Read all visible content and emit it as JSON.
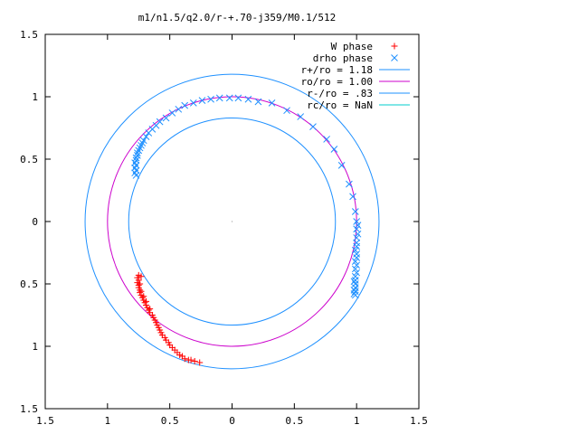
{
  "chart_data": {
    "type": "scatter",
    "title": "m1/n1.5/q2.0/r-+.70-j359/M0.1/512",
    "xlim": [
      -1.5,
      1.5
    ],
    "ylim": [
      -1.5,
      1.5
    ],
    "x_ticks": [
      {
        "value": -1.5,
        "label": "1.5"
      },
      {
        "value": -1.0,
        "label": "1"
      },
      {
        "value": -0.5,
        "label": "0.5"
      },
      {
        "value": 0,
        "label": "0"
      },
      {
        "value": 0.5,
        "label": "0.5"
      },
      {
        "value": 1.0,
        "label": "1"
      },
      {
        "value": 1.5,
        "label": "1.5"
      }
    ],
    "y_ticks": [
      {
        "value": 1.5,
        "label": "1.5"
      },
      {
        "value": 1.0,
        "label": "1"
      },
      {
        "value": 0.5,
        "label": "0.5"
      },
      {
        "value": 0,
        "label": "0"
      },
      {
        "value": -0.5,
        "label": "0.5"
      },
      {
        "value": -1.0,
        "label": "1"
      },
      {
        "value": -1.5,
        "label": "1.5"
      }
    ],
    "grid": false,
    "legend_position": "top-right",
    "series": [
      {
        "name": "W phase",
        "marker": "plus",
        "color": "#ff0000",
        "points": [
          [
            -0.75,
            -0.43
          ],
          [
            -0.76,
            -0.45
          ],
          [
            -0.75,
            -0.47
          ],
          [
            -0.76,
            -0.49
          ],
          [
            -0.75,
            -0.51
          ],
          [
            -0.75,
            -0.53
          ],
          [
            -0.74,
            -0.55
          ],
          [
            -0.74,
            -0.57
          ],
          [
            -0.73,
            -0.59
          ],
          [
            -0.72,
            -0.61
          ],
          [
            -0.71,
            -0.63
          ],
          [
            -0.7,
            -0.65
          ],
          [
            -0.69,
            -0.67
          ],
          [
            -0.68,
            -0.69
          ],
          [
            -0.67,
            -0.71
          ],
          [
            -0.66,
            -0.73
          ],
          [
            -0.64,
            -0.75
          ],
          [
            -0.63,
            -0.77
          ],
          [
            -0.62,
            -0.79
          ],
          [
            -0.61,
            -0.81
          ],
          [
            -0.6,
            -0.83
          ],
          [
            -0.59,
            -0.85
          ],
          [
            -0.58,
            -0.87
          ],
          [
            -0.57,
            -0.89
          ],
          [
            -0.56,
            -0.91
          ],
          [
            -0.54,
            -0.93
          ],
          [
            -0.53,
            -0.95
          ],
          [
            -0.51,
            -0.97
          ],
          [
            -0.5,
            -0.99
          ],
          [
            -0.48,
            -1.01
          ],
          [
            -0.46,
            -1.03
          ],
          [
            -0.44,
            -1.05
          ],
          [
            -0.42,
            -1.07
          ],
          [
            -0.4,
            -1.08
          ],
          [
            -0.38,
            -1.1
          ],
          [
            -0.35,
            -1.11
          ],
          [
            -0.33,
            -1.11
          ],
          [
            -0.3,
            -1.12
          ],
          [
            -0.26,
            -1.13
          ],
          [
            -0.73,
            -0.44
          ],
          [
            -0.74,
            -0.5
          ],
          [
            -0.73,
            -0.56
          ],
          [
            -0.71,
            -0.6
          ],
          [
            -0.69,
            -0.64
          ],
          [
            -0.66,
            -0.7
          ]
        ]
      },
      {
        "name": "drho phase",
        "marker": "x",
        "color": "#1e90ff",
        "points": [
          [
            -0.77,
            0.37
          ],
          [
            -0.78,
            0.39
          ],
          [
            -0.77,
            0.41
          ],
          [
            -0.78,
            0.43
          ],
          [
            -0.77,
            0.45
          ],
          [
            -0.78,
            0.47
          ],
          [
            -0.77,
            0.49
          ],
          [
            -0.77,
            0.51
          ],
          [
            -0.76,
            0.53
          ],
          [
            -0.76,
            0.55
          ],
          [
            -0.75,
            0.57
          ],
          [
            -0.74,
            0.59
          ],
          [
            -0.73,
            0.61
          ],
          [
            -0.72,
            0.63
          ],
          [
            -0.71,
            0.65
          ],
          [
            -0.69,
            0.68
          ],
          [
            -0.67,
            0.71
          ],
          [
            -0.64,
            0.74
          ],
          [
            -0.61,
            0.77
          ],
          [
            -0.58,
            0.8
          ],
          [
            -0.53,
            0.83
          ],
          [
            -0.48,
            0.87
          ],
          [
            -0.43,
            0.9
          ],
          [
            -0.38,
            0.93
          ],
          [
            -0.31,
            0.95
          ],
          [
            -0.24,
            0.97
          ],
          [
            -0.17,
            0.98
          ],
          [
            -0.1,
            0.99
          ],
          [
            -0.02,
            0.99
          ],
          [
            0.05,
            0.99
          ],
          [
            0.13,
            0.98
          ],
          [
            0.21,
            0.96
          ],
          [
            0.32,
            0.95
          ],
          [
            0.44,
            0.89
          ],
          [
            0.55,
            0.84
          ],
          [
            0.65,
            0.76
          ],
          [
            0.76,
            0.66
          ],
          [
            0.82,
            0.58
          ],
          [
            0.88,
            0.45
          ],
          [
            0.94,
            0.3
          ],
          [
            0.97,
            0.2
          ],
          [
            0.99,
            0.08
          ],
          [
            1.0,
            0.0
          ],
          [
            1.01,
            -0.03
          ],
          [
            1.0,
            -0.06
          ],
          [
            1.01,
            -0.1
          ],
          [
            1.0,
            -0.13
          ],
          [
            1.0,
            -0.17
          ],
          [
            1.0,
            -0.2
          ],
          [
            0.99,
            -0.23
          ],
          [
            1.0,
            -0.26
          ],
          [
            1.0,
            -0.29
          ],
          [
            0.99,
            -0.32
          ],
          [
            1.0,
            -0.35
          ],
          [
            0.99,
            -0.38
          ],
          [
            1.0,
            -0.41
          ],
          [
            0.99,
            -0.44
          ],
          [
            0.99,
            -0.47
          ],
          [
            0.99,
            -0.5
          ],
          [
            0.99,
            -0.53
          ],
          [
            0.99,
            -0.56
          ],
          [
            0.99,
            -0.59
          ],
          [
            0.98,
            -0.48
          ],
          [
            0.98,
            -0.55
          ],
          [
            0.98,
            -0.58
          ]
        ]
      },
      {
        "name": "r+/ro = 1.18",
        "marker": "line",
        "color": "#1e90ff",
        "radius": 1.18
      },
      {
        "name": "ro/ro = 1.00",
        "marker": "line",
        "color": "#cc00cc",
        "radius": 1.0
      },
      {
        "name": "r-/ro = .83",
        "marker": "line",
        "color": "#1e90ff",
        "radius": 0.83
      },
      {
        "name": "rc/ro = NaN",
        "marker": "line",
        "color": "#00cccc",
        "radius": null
      }
    ]
  }
}
